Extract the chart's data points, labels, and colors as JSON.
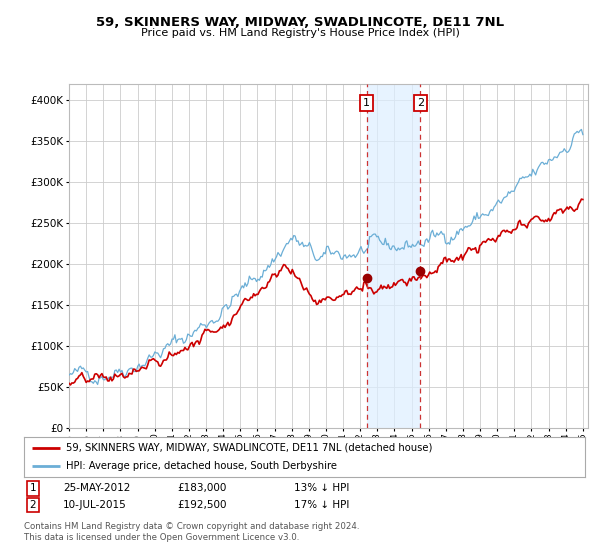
{
  "title": "59, SKINNERS WAY, MIDWAY, SWADLINCOTE, DE11 7NL",
  "subtitle": "Price paid vs. HM Land Registry's House Price Index (HPI)",
  "legend_line1": "59, SKINNERS WAY, MIDWAY, SWADLINCOTE, DE11 7NL (detached house)",
  "legend_line2": "HPI: Average price, detached house, South Derbyshire",
  "sale1_date": "25-MAY-2012",
  "sale1_price": "£183,000",
  "sale1_hpi": "13% ↓ HPI",
  "sale1_year": 2012.38,
  "sale1_value": 183000,
  "sale2_date": "10-JUL-2015",
  "sale2_price": "£192,500",
  "sale2_hpi": "17% ↓ HPI",
  "sale2_year": 2015.52,
  "sale2_value": 192500,
  "hpi_color": "#6baed6",
  "price_color": "#cc0000",
  "marker_color": "#990000",
  "shade_color": "#ddeeff",
  "vline_color": "#cc3333",
  "grid_color": "#cccccc",
  "background_color": "#ffffff",
  "footnote1": "Contains HM Land Registry data © Crown copyright and database right 2024.",
  "footnote2": "This data is licensed under the Open Government Licence v3.0.",
  "ylim": [
    0,
    420000
  ],
  "yticks": [
    0,
    50000,
    100000,
    150000,
    200000,
    250000,
    300000,
    350000,
    400000
  ],
  "xlim_start": 1995,
  "xlim_end": 2025.3
}
